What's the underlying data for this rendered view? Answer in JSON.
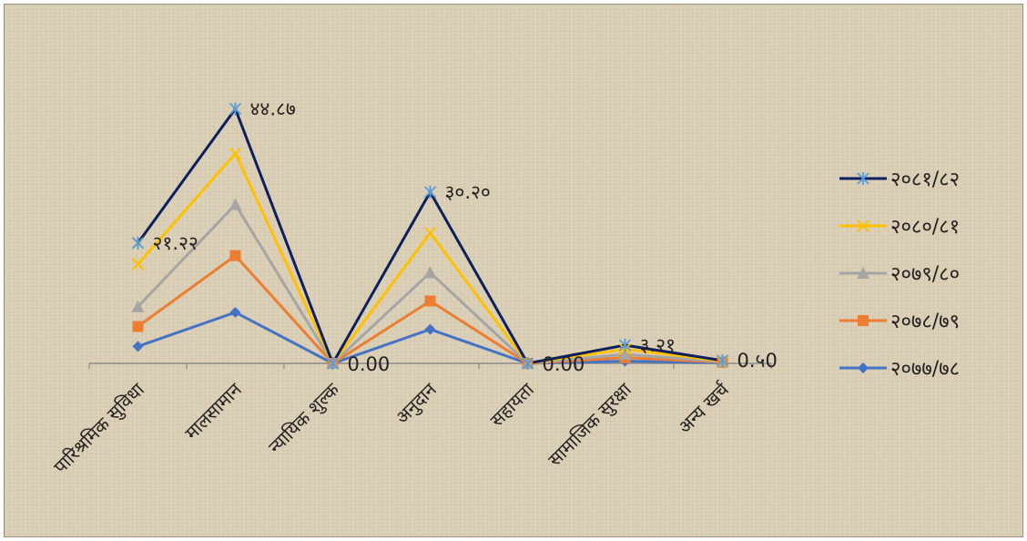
{
  "chart_data": {
    "type": "line",
    "title": "",
    "xlabel": "",
    "ylabel": "",
    "ylim": [
      0,
      48
    ],
    "grid": false,
    "legend_position": "right",
    "categories": [
      "पारिश्रमिक सुविधा",
      "मालसामान",
      "न्यायिक शुल्क",
      "अनुदान",
      "सहायता",
      "सामाजिक सुरक्षा",
      "अन्य खर्च"
    ],
    "series": [
      {
        "name": "२०८१/८२",
        "color": "#0d1f5c",
        "marker": "star",
        "values": [
          21.22,
          44.87,
          0.0,
          30.2,
          0.0,
          3.21,
          0.5
        ]
      },
      {
        "name": "२०८०/८१",
        "color": "#ffc000",
        "marker": "x",
        "values": [
          17.5,
          37.0,
          0.0,
          23.0,
          0.0,
          2.5,
          0.4
        ]
      },
      {
        "name": "२०७९/८०",
        "color": "#a5a5a5",
        "marker": "triangle",
        "values": [
          10.0,
          28.0,
          0.0,
          16.0,
          0.0,
          1.6,
          0.3
        ]
      },
      {
        "name": "२०७८/७९",
        "color": "#ed7d31",
        "marker": "square",
        "values": [
          6.5,
          19.0,
          0.0,
          11.0,
          0.0,
          1.0,
          0.2
        ]
      },
      {
        "name": "२०७७/७८",
        "color": "#4472c4",
        "marker": "diamond",
        "values": [
          3.0,
          9.0,
          0.0,
          6.0,
          0.0,
          0.4,
          0.1
        ]
      }
    ],
    "data_labels": [
      {
        "series": 0,
        "index": 0,
        "text": "२१.२२"
      },
      {
        "series": 0,
        "index": 1,
        "text": "४४.८७"
      },
      {
        "series": 0,
        "index": 2,
        "text": "0.00"
      },
      {
        "series": 0,
        "index": 3,
        "text": "३०.२०"
      },
      {
        "series": 0,
        "index": 4,
        "text": "0.00"
      },
      {
        "series": 0,
        "index": 5,
        "text": "३.२१"
      },
      {
        "series": 0,
        "index": 6,
        "text": "0.५0"
      }
    ]
  }
}
